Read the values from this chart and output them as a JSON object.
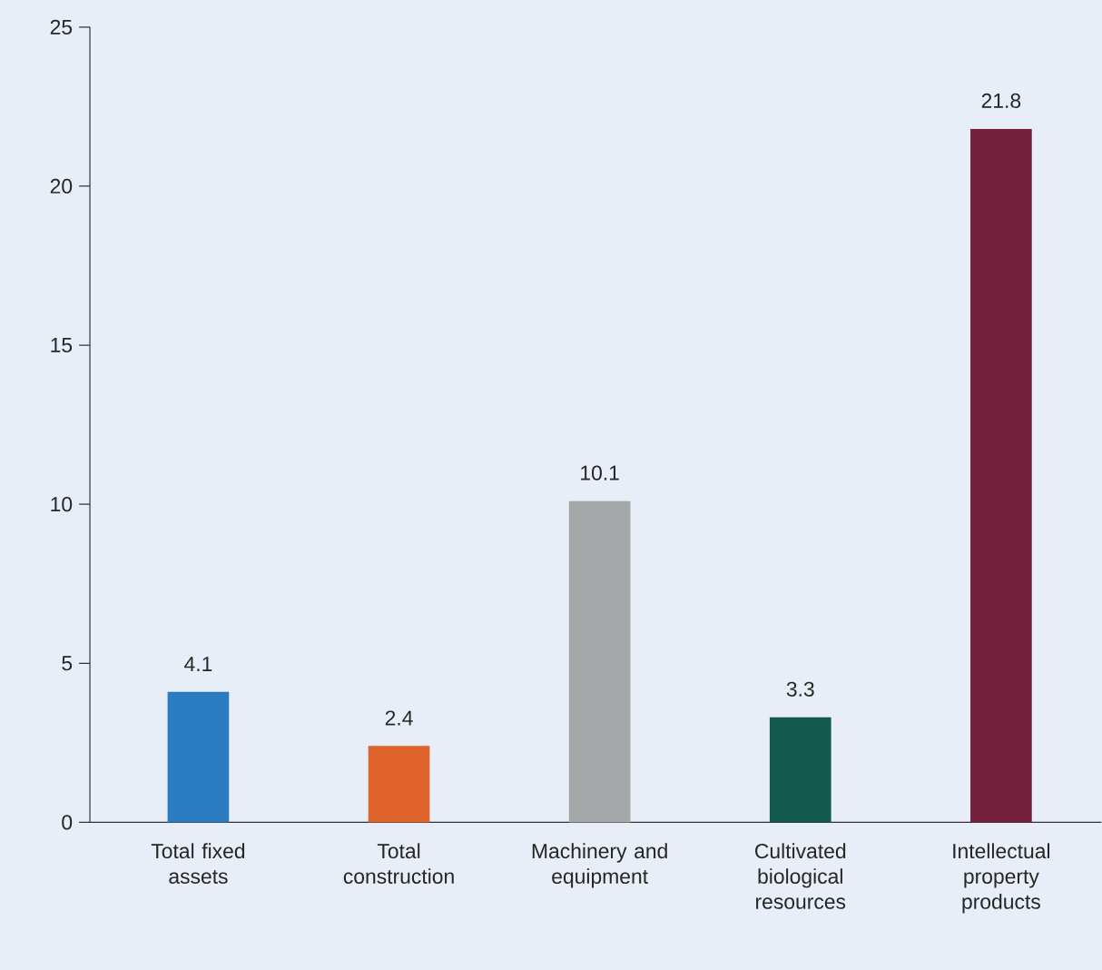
{
  "chart_data": {
    "type": "bar",
    "categories": [
      "Total fixed assets",
      "Total construction",
      "Machinery and equipment",
      "Cultivated biological resources",
      "Intellectual property products"
    ],
    "values": [
      4.1,
      2.4,
      10.1,
      3.3,
      21.8
    ],
    "colors": [
      "#2a7bc0",
      "#e0632b",
      "#a5a8a8",
      "#135a4c",
      "#741f3c"
    ],
    "ylim": [
      0,
      25
    ],
    "yticks": [
      0,
      5,
      10,
      15,
      20,
      25
    ],
    "data_labels": true,
    "grid": false
  }
}
